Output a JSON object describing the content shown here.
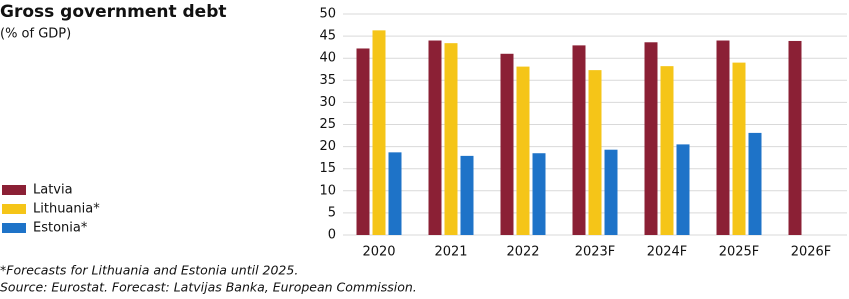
{
  "chart_data": {
    "type": "bar",
    "title": "Gross government debt",
    "subtitle": "(% of GDP)",
    "categories": [
      "2020",
      "2021",
      "2022",
      "2023F",
      "2024F",
      "2025F",
      "2026F"
    ],
    "series": [
      {
        "name": "Latvia",
        "color": "#8b2035",
        "values": [
          42.2,
          44.0,
          41.0,
          42.9,
          43.6,
          44.0,
          43.9
        ]
      },
      {
        "name": "Lithuania*",
        "color": "#f5c518",
        "values": [
          46.3,
          43.4,
          38.1,
          37.3,
          38.2,
          39.0,
          null
        ]
      },
      {
        "name": "Estonia*",
        "color": "#1e73c8",
        "values": [
          18.7,
          17.9,
          18.5,
          19.3,
          20.5,
          23.1,
          null
        ]
      }
    ],
    "ylim": [
      0,
      50
    ],
    "yticks": [
      0,
      5,
      10,
      15,
      20,
      25,
      30,
      35,
      40,
      45,
      50
    ],
    "grid": true,
    "legend": "left",
    "footnotes": [
      "*Forecasts for Lithuania and Estonia until 2025.",
      "Source: Eurostat. Forecast: Latvijas Banka, European Commission."
    ]
  }
}
